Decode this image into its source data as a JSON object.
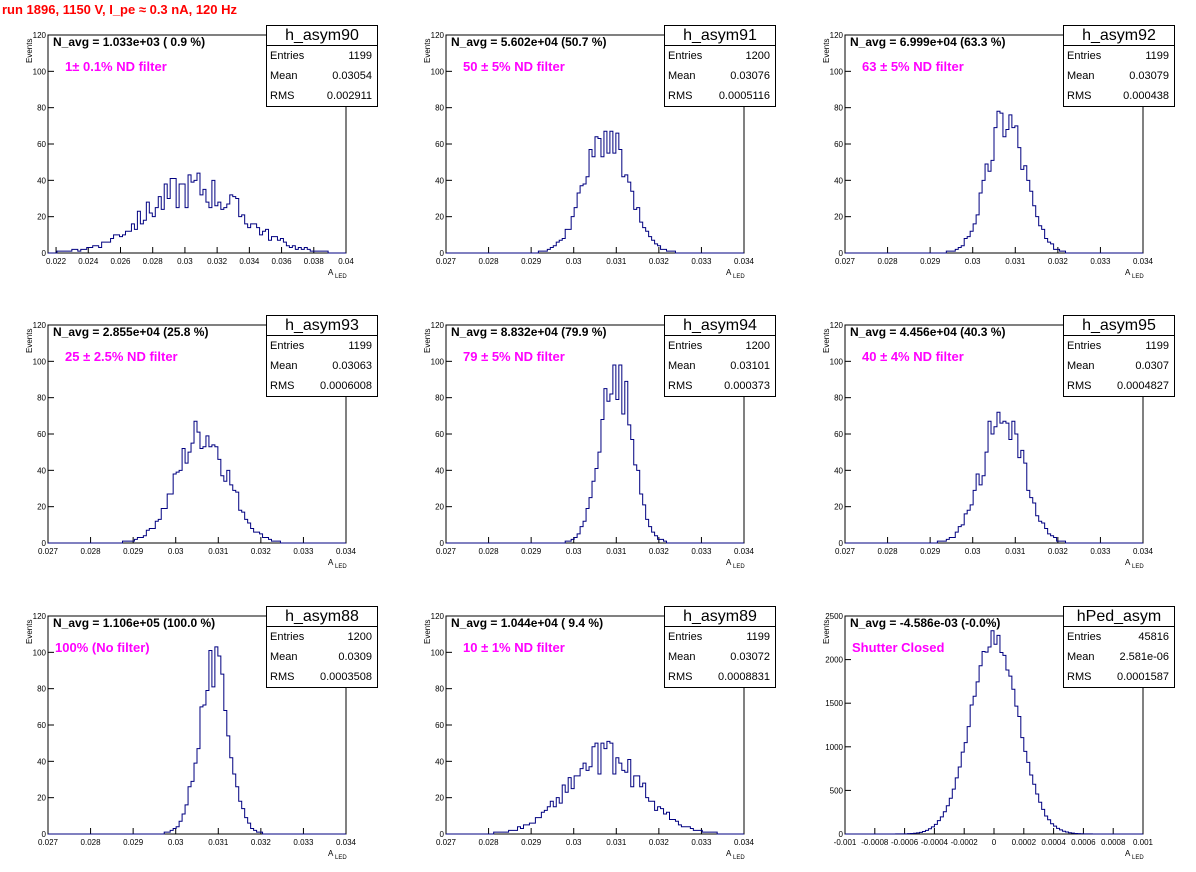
{
  "page": {
    "run_title": "run 1896,  1150 V, I_pe ≈ 0.3 nA, 120 Hz"
  },
  "common": {
    "ylabel": "Events",
    "xlabel": "A",
    "xlabel_sub": "LED",
    "stat_labels": {
      "entries": "Entries",
      "mean": "Mean",
      "rms": "RMS"
    },
    "line_color": "#000080",
    "filter_color": "#ff00ff",
    "title_color": "#ff0000"
  },
  "chart_data": [
    {
      "type": "bar",
      "name": "h_asym90",
      "n_avg": "N_avg = 1.033e+03 ( 0.9 %)",
      "filter": "1± 0.1% ND filter",
      "stats": {
        "entries": "1199",
        "mean": "0.03054",
        "rms": "0.002911"
      },
      "xlim": [
        0.0215,
        0.04
      ],
      "ylim": [
        0,
        120
      ],
      "xticks": [
        0.022,
        0.024,
        0.026,
        0.028,
        0.03,
        0.032,
        0.034,
        0.036,
        0.038,
        0.04
      ],
      "xtick_labels": [
        "0.022",
        "0.024",
        "0.026",
        "0.028",
        "0.03",
        "0.032",
        "0.034",
        "0.036",
        "0.038",
        "0.04"
      ],
      "yticks": [
        0,
        20,
        40,
        60,
        80,
        100,
        120
      ],
      "ytick_labels": [
        "0",
        "20",
        "40",
        "60",
        "80",
        "100",
        "120"
      ],
      "dist": {
        "mean": 0.03054,
        "sigma": 0.0029,
        "peak": 36,
        "noise": 0.3,
        "seed": 90
      }
    },
    {
      "type": "bar",
      "name": "h_asym91",
      "n_avg": "N_avg = 5.602e+04 (50.7 %)",
      "filter": "50 ± 5% ND filter",
      "stats": {
        "entries": "1200",
        "mean": "0.03076",
        "rms": "0.0005116"
      },
      "xlim": [
        0.027,
        0.034
      ],
      "ylim": [
        0,
        120
      ],
      "xticks": [
        0.027,
        0.028,
        0.029,
        0.03,
        0.031,
        0.032,
        0.033,
        0.034
      ],
      "xtick_labels": [
        "0.027",
        "0.028",
        "0.029",
        "0.03",
        "0.031",
        "0.032",
        "0.033",
        "0.034"
      ],
      "yticks": [
        0,
        20,
        40,
        60,
        80,
        100,
        120
      ],
      "ytick_labels": [
        "0",
        "20",
        "40",
        "60",
        "80",
        "100",
        "120"
      ],
      "dist": {
        "mean": 0.03076,
        "sigma": 0.00051,
        "peak": 64,
        "noise": 0.18,
        "seed": 91
      }
    },
    {
      "type": "bar",
      "name": "h_asym92",
      "n_avg": "N_avg = 6.999e+04 (63.3 %)",
      "filter": "63 ± 5% ND filter",
      "stats": {
        "entries": "1199",
        "mean": "0.03079",
        "rms": "0.000438"
      },
      "xlim": [
        0.027,
        0.034
      ],
      "ylim": [
        0,
        120
      ],
      "xticks": [
        0.027,
        0.028,
        0.029,
        0.03,
        0.031,
        0.032,
        0.033,
        0.034
      ],
      "xtick_labels": [
        "0.027",
        "0.028",
        "0.029",
        "0.03",
        "0.031",
        "0.032",
        "0.033",
        "0.034"
      ],
      "yticks": [
        0,
        20,
        40,
        60,
        80,
        100,
        120
      ],
      "ytick_labels": [
        "0",
        "20",
        "40",
        "60",
        "80",
        "100",
        "120"
      ],
      "dist": {
        "mean": 0.03079,
        "sigma": 0.00044,
        "peak": 76,
        "noise": 0.18,
        "seed": 92
      }
    },
    {
      "type": "bar",
      "name": "h_asym93",
      "n_avg": "N_avg = 2.855e+04 (25.8 %)",
      "filter": "25 ± 2.5% ND filter",
      "stats": {
        "entries": "1199",
        "mean": "0.03063",
        "rms": "0.0006008"
      },
      "xlim": [
        0.027,
        0.034
      ],
      "ylim": [
        0,
        120
      ],
      "xticks": [
        0.027,
        0.028,
        0.029,
        0.03,
        0.031,
        0.032,
        0.033,
        0.034
      ],
      "xtick_labels": [
        "0.027",
        "0.028",
        "0.029",
        "0.03",
        "0.031",
        "0.032",
        "0.033",
        "0.034"
      ],
      "yticks": [
        0,
        20,
        40,
        60,
        80,
        100,
        120
      ],
      "ytick_labels": [
        "0",
        "20",
        "40",
        "60",
        "80",
        "100",
        "120"
      ],
      "dist": {
        "mean": 0.03063,
        "sigma": 0.0006,
        "peak": 60,
        "noise": 0.18,
        "seed": 93
      }
    },
    {
      "type": "bar",
      "name": "h_asym94",
      "n_avg": "N_avg = 8.832e+04 (79.9 %)",
      "filter": "79 ± 5% ND filter",
      "stats": {
        "entries": "1200",
        "mean": "0.03101",
        "rms": "0.000373"
      },
      "xlim": [
        0.027,
        0.034
      ],
      "ylim": [
        0,
        120
      ],
      "xticks": [
        0.027,
        0.028,
        0.029,
        0.03,
        0.031,
        0.032,
        0.033,
        0.034
      ],
      "xtick_labels": [
        "0.027",
        "0.028",
        "0.029",
        "0.03",
        "0.031",
        "0.032",
        "0.033",
        "0.034"
      ],
      "yticks": [
        0,
        20,
        40,
        60,
        80,
        100,
        120
      ],
      "ytick_labels": [
        "0",
        "20",
        "40",
        "60",
        "80",
        "100",
        "120"
      ],
      "dist": {
        "mean": 0.03101,
        "sigma": 0.00037,
        "peak": 94,
        "noise": 0.18,
        "seed": 94
      }
    },
    {
      "type": "bar",
      "name": "h_asym95",
      "n_avg": "N_avg = 4.456e+04 (40.3 %)",
      "filter": "40 ± 4% ND filter",
      "stats": {
        "entries": "1199",
        "mean": "0.0307",
        "rms": "0.0004827"
      },
      "xlim": [
        0.027,
        0.034
      ],
      "ylim": [
        0,
        120
      ],
      "xticks": [
        0.027,
        0.028,
        0.029,
        0.03,
        0.031,
        0.032,
        0.033,
        0.034
      ],
      "xtick_labels": [
        "0.027",
        "0.028",
        "0.029",
        "0.03",
        "0.031",
        "0.032",
        "0.033",
        "0.034"
      ],
      "yticks": [
        0,
        20,
        40,
        60,
        80,
        100,
        120
      ],
      "ytick_labels": [
        "0",
        "20",
        "40",
        "60",
        "80",
        "100",
        "120"
      ],
      "dist": {
        "mean": 0.0307,
        "sigma": 0.00048,
        "peak": 70,
        "noise": 0.18,
        "seed": 95
      }
    },
    {
      "type": "bar",
      "name": "h_asym88",
      "n_avg": "N_avg = 1.106e+05 (100.0 %)",
      "filter": "100% (No filter)",
      "stats": {
        "entries": "1200",
        "mean": "0.0309",
        "rms": "0.0003508"
      },
      "xlim": [
        0.027,
        0.034
      ],
      "ylim": [
        0,
        120
      ],
      "xticks": [
        0.027,
        0.028,
        0.029,
        0.03,
        0.031,
        0.032,
        0.033,
        0.034
      ],
      "xtick_labels": [
        "0.027",
        "0.028",
        "0.029",
        "0.03",
        "0.031",
        "0.032",
        "0.033",
        "0.034"
      ],
      "yticks": [
        0,
        20,
        40,
        60,
        80,
        100,
        120
      ],
      "ytick_labels": [
        "0",
        "20",
        "40",
        "60",
        "80",
        "100",
        "120"
      ],
      "dist": {
        "mean": 0.0309,
        "sigma": 0.00035,
        "peak": 92,
        "noise": 0.15,
        "seed": 88
      }
    },
    {
      "type": "bar",
      "name": "h_asym89",
      "n_avg": "N_avg = 1.044e+04 ( 9.4 %)",
      "filter": "10 ± 1% ND filter",
      "stats": {
        "entries": "1199",
        "mean": "0.03072",
        "rms": "0.0008831"
      },
      "xlim": [
        0.027,
        0.034
      ],
      "ylim": [
        0,
        120
      ],
      "xticks": [
        0.027,
        0.028,
        0.029,
        0.03,
        0.031,
        0.032,
        0.033,
        0.034
      ],
      "xtick_labels": [
        "0.027",
        "0.028",
        "0.029",
        "0.03",
        "0.031",
        "0.032",
        "0.033",
        "0.034"
      ],
      "yticks": [
        0,
        20,
        40,
        60,
        80,
        100,
        120
      ],
      "ytick_labels": [
        "0",
        "20",
        "40",
        "60",
        "80",
        "100",
        "120"
      ],
      "dist": {
        "mean": 0.03072,
        "sigma": 0.00088,
        "peak": 42,
        "noise": 0.22,
        "seed": 89
      }
    },
    {
      "type": "bar",
      "name": "hPed_asym",
      "n_avg": "N_avg = -4.586e-03 (-0.0%)",
      "filter": "Shutter Closed",
      "stats": {
        "entries": "45816",
        "mean": "2.581e-06",
        "rms": "0.0001587"
      },
      "xlim": [
        -0.001,
        0.001
      ],
      "ylim": [
        0,
        2500
      ],
      "xticks": [
        -0.001,
        -0.0008,
        -0.0006,
        -0.0004,
        -0.0002,
        0,
        0.0002,
        0.0004,
        0.0006,
        0.0008,
        0.001
      ],
      "xtick_labels": [
        "-0.001",
        "-0.0008",
        "-0.0006",
        "-0.0004",
        "-0.0002",
        "0",
        "0.0002",
        "0.0004",
        "0.0006",
        "0.0008",
        "0.001"
      ],
      "yticks": [
        0,
        500,
        1000,
        1500,
        2000,
        2500
      ],
      "ytick_labels": [
        "0",
        "500",
        "1000",
        "1500",
        "2000",
        "2500"
      ],
      "dist": {
        "mean": 2.6e-06,
        "sigma": 0.00016,
        "peak": 2250,
        "noise": 0.04,
        "seed": 77
      }
    }
  ]
}
